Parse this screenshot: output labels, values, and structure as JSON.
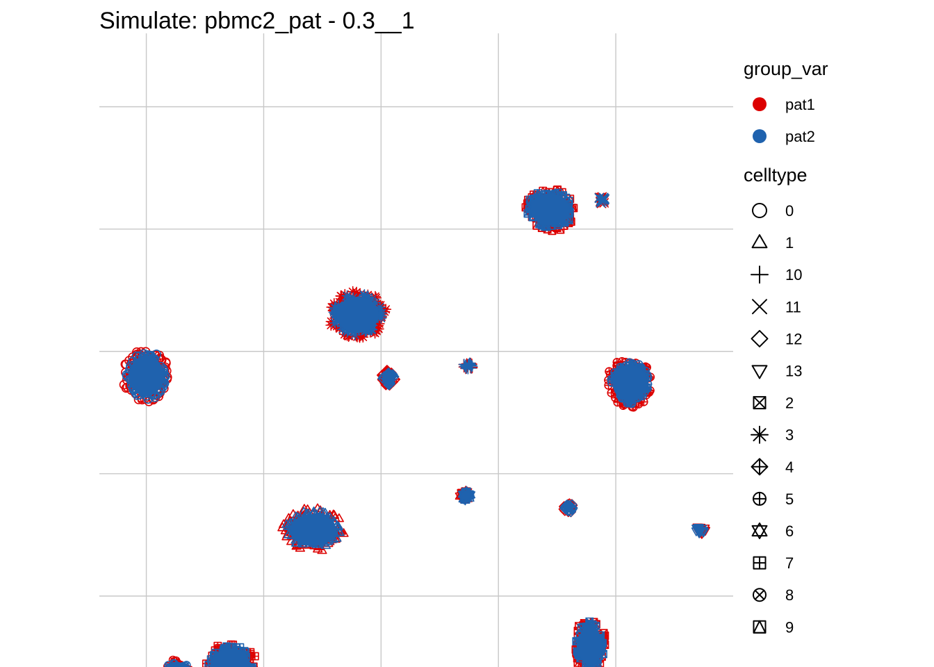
{
  "chart_data": {
    "type": "scatter",
    "title": "Simulate: pbmc2_pat - 0.3__1",
    "xlabel": "",
    "ylabel": "",
    "axis_ticks_visible": false,
    "grid": true,
    "x_gridlines": [
      -10,
      -5,
      0,
      5,
      10
    ],
    "y_gridlines": [
      10,
      5,
      0,
      -5,
      -10
    ],
    "xlim": [
      -12,
      15
    ],
    "ylim": [
      -12.9,
      13
    ],
    "colors": {
      "pat1": "#dc0000",
      "pat2": "#1f62ae"
    },
    "legend": {
      "placement": "right",
      "color_title": "group_var",
      "color_entries": [
        "pat1",
        "pat2"
      ],
      "shape_title": "celltype",
      "shape_entries": [
        {
          "label": "0",
          "shape": "circle"
        },
        {
          "label": "1",
          "shape": "triangle"
        },
        {
          "label": "10",
          "shape": "plus"
        },
        {
          "label": "11",
          "shape": "cross"
        },
        {
          "label": "12",
          "shape": "diamond"
        },
        {
          "label": "13",
          "shape": "triangle-down"
        },
        {
          "label": "2",
          "shape": "square-cross"
        },
        {
          "label": "3",
          "shape": "asterisk"
        },
        {
          "label": "4",
          "shape": "diamond-plus"
        },
        {
          "label": "5",
          "shape": "circle-plus"
        },
        {
          "label": "6",
          "shape": "star-of-david"
        },
        {
          "label": "7",
          "shape": "square-plus"
        },
        {
          "label": "8",
          "shape": "circle-cross"
        },
        {
          "label": "9",
          "shape": "square-triangle"
        }
      ]
    },
    "clusters": [
      {
        "celltype": "0",
        "shape": "circle",
        "x": -10.0,
        "y": -1.0,
        "rx": 0.9,
        "ry": 1.0
      },
      {
        "celltype": "1",
        "shape": "triangle",
        "x": -2.9,
        "y": -7.3,
        "rx": 1.2,
        "ry": 0.8
      },
      {
        "celltype": "10",
        "shape": "plus",
        "x": 3.7,
        "y": -0.6,
        "rx": 0.2,
        "ry": 0.15
      },
      {
        "celltype": "11",
        "shape": "cross",
        "x": 9.4,
        "y": 6.2,
        "rx": 0.15,
        "ry": 0.15
      },
      {
        "celltype": "12",
        "shape": "diamond",
        "x": 8.0,
        "y": -6.4,
        "rx": 0.2,
        "ry": 0.2
      },
      {
        "celltype": "13",
        "shape": "triangle-down",
        "x": 13.6,
        "y": -7.3,
        "rx": 0.2,
        "ry": 0.15
      },
      {
        "celltype": "2",
        "shape": "square-cross",
        "x": 8.9,
        "y": -12.0,
        "rx": 0.6,
        "ry": 1.0
      },
      {
        "celltype": "3",
        "shape": "asterisk",
        "x": -1.0,
        "y": 1.5,
        "rx": 1.1,
        "ry": 0.9
      },
      {
        "celltype": "4",
        "shape": "diamond-plus",
        "x": 0.3,
        "y": -1.1,
        "rx": 0.3,
        "ry": 0.3
      },
      {
        "celltype": "5",
        "shape": "circle-plus",
        "x": 10.6,
        "y": -1.3,
        "rx": 0.9,
        "ry": 0.9
      },
      {
        "celltype": "6",
        "shape": "star-of-david",
        "x": 3.6,
        "y": -5.9,
        "rx": 0.25,
        "ry": 0.2
      },
      {
        "celltype": "7",
        "shape": "square-plus",
        "x": -6.4,
        "y": -12.8,
        "rx": 1.0,
        "ry": 0.8
      },
      {
        "celltype": "8",
        "shape": "circle-cross",
        "x": -8.7,
        "y": -13.1,
        "rx": 0.55,
        "ry": 0.5
      },
      {
        "celltype": "9",
        "shape": "square-triangle",
        "x": 7.2,
        "y": 5.8,
        "rx": 1.0,
        "ry": 0.8
      }
    ]
  }
}
